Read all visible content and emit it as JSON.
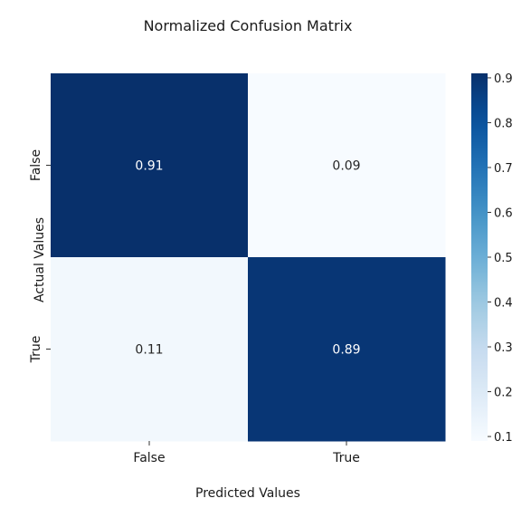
{
  "chart_data": {
    "type": "heatmap",
    "title": "Normalized Confusion Matrix",
    "xlabel": "Predicted Values",
    "ylabel": "Actual Values",
    "x_categories": [
      "False",
      "True"
    ],
    "y_categories": [
      "False",
      "True"
    ],
    "values": [
      [
        0.91,
        0.09
      ],
      [
        0.11,
        0.89
      ]
    ],
    "value_labels": [
      [
        "0.91",
        "0.09"
      ],
      [
        "0.11",
        "0.89"
      ]
    ],
    "colormap": "Blues",
    "colorbar": {
      "range": [
        0.09,
        0.91
      ],
      "ticks": [
        0.1,
        0.2,
        0.3,
        0.4,
        0.5,
        0.6,
        0.7,
        0.8,
        0.9
      ],
      "tick_labels": [
        "0.1",
        "0.2",
        "0.3",
        "0.4",
        "0.5",
        "0.6",
        "0.7",
        "0.8",
        "0.9"
      ]
    },
    "colors": {
      "low": "#f7fbff",
      "high": "#08306b",
      "text_on_dark": "#ffffff",
      "text_on_light": "#262626"
    }
  }
}
